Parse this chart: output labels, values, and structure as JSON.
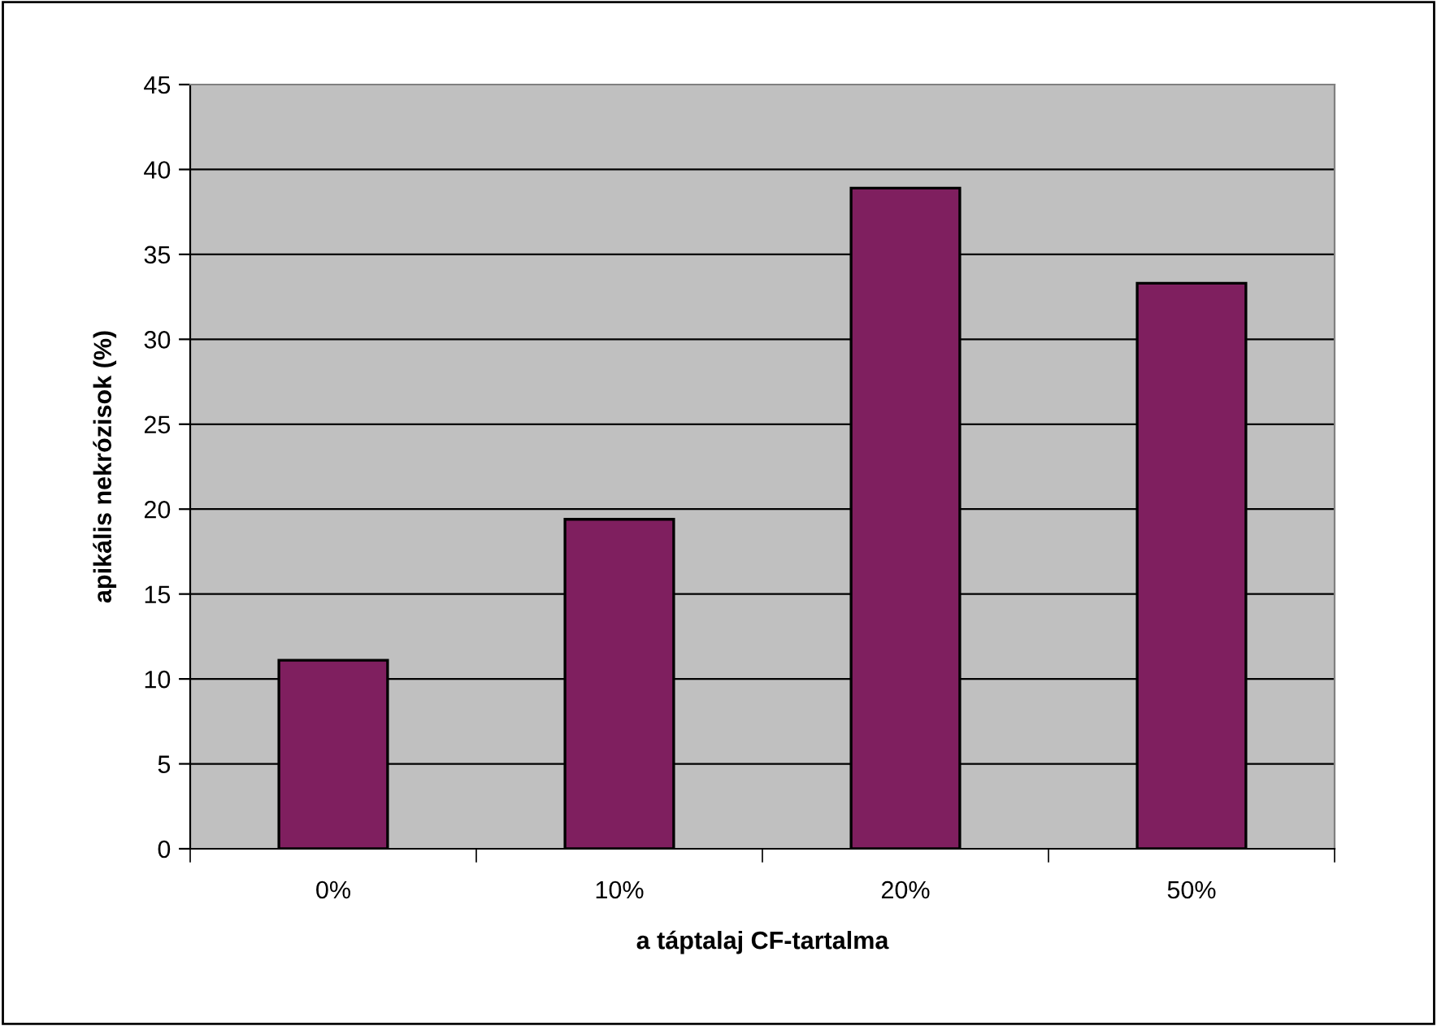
{
  "chart_data": {
    "type": "bar",
    "xlabel": "a táptalaj CF-tartalma",
    "ylabel": "apikális nekrózisok (%)",
    "categories": [
      "0%",
      "10%",
      "20%",
      "50%"
    ],
    "values": [
      11.1,
      19.4,
      38.9,
      33.3
    ],
    "color": "#7f1f5f",
    "ylim": [
      0,
      45
    ],
    "yticks": [
      0,
      5,
      10,
      15,
      20,
      25,
      30,
      35,
      40,
      45
    ],
    "grid": "y"
  }
}
